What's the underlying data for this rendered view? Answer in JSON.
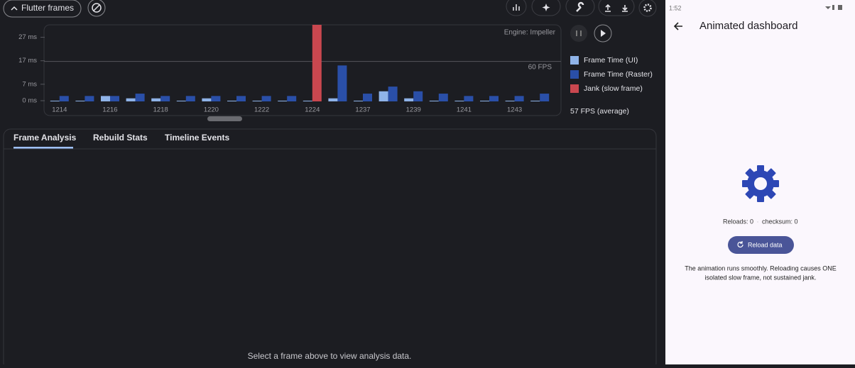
{
  "toolbar": {
    "title": "Flutter frames"
  },
  "chart_data": {
    "type": "bar",
    "annotation": "Engine: Impeller",
    "categories": [
      1214,
      null,
      1216,
      null,
      1218,
      null,
      1220,
      null,
      1222,
      null,
      1224,
      null,
      1237,
      null,
      1239,
      null,
      1241,
      null,
      1243,
      null
    ],
    "series": [
      {
        "name": "Frame Time (UI)",
        "color": "#8fb3e8",
        "values": [
          0,
          0,
          2,
          1,
          1,
          0,
          1,
          0,
          0,
          0,
          0,
          1,
          0,
          4,
          1,
          0,
          0,
          0,
          0,
          0
        ]
      },
      {
        "name": "Frame Time (Raster)",
        "color": "#2a4fa8",
        "values": [
          2,
          2,
          2,
          3,
          2,
          2,
          2,
          2,
          2,
          2,
          null,
          15,
          3,
          6,
          4,
          3,
          2,
          2,
          2,
          3
        ]
      },
      {
        "name": "Jank (slow frame)",
        "color": "#c9474f",
        "values": [
          null,
          null,
          null,
          null,
          null,
          null,
          null,
          null,
          null,
          null,
          33,
          null,
          null,
          null,
          null,
          null,
          null,
          null,
          null,
          null
        ]
      }
    ],
    "ylim": [
      0,
      32
    ],
    "yticks": [
      {
        "value": 0,
        "label": "0 ms"
      },
      {
        "value": 7,
        "label": "7 ms"
      },
      {
        "value": 17,
        "label": "17 ms"
      },
      {
        "value": 27,
        "label": "27 ms"
      }
    ],
    "target_line": {
      "value": 16.7,
      "label": "60 FPS"
    },
    "average": "57 FPS (average)"
  },
  "tabs": [
    "Frame Analysis",
    "Rebuild Stats",
    "Timeline Events"
  ],
  "empty_message": "Select a frame above to view analysis data.",
  "device": {
    "status_time": "1:52",
    "app_title": "Animated dashboard",
    "reloads": "Reloads: 0",
    "checksum": "checksum: 0",
    "button": "Reload data",
    "description": [
      "The animation runs smoothly. Reloading causes ONE",
      "isolated slow frame, not sustained jank."
    ]
  }
}
